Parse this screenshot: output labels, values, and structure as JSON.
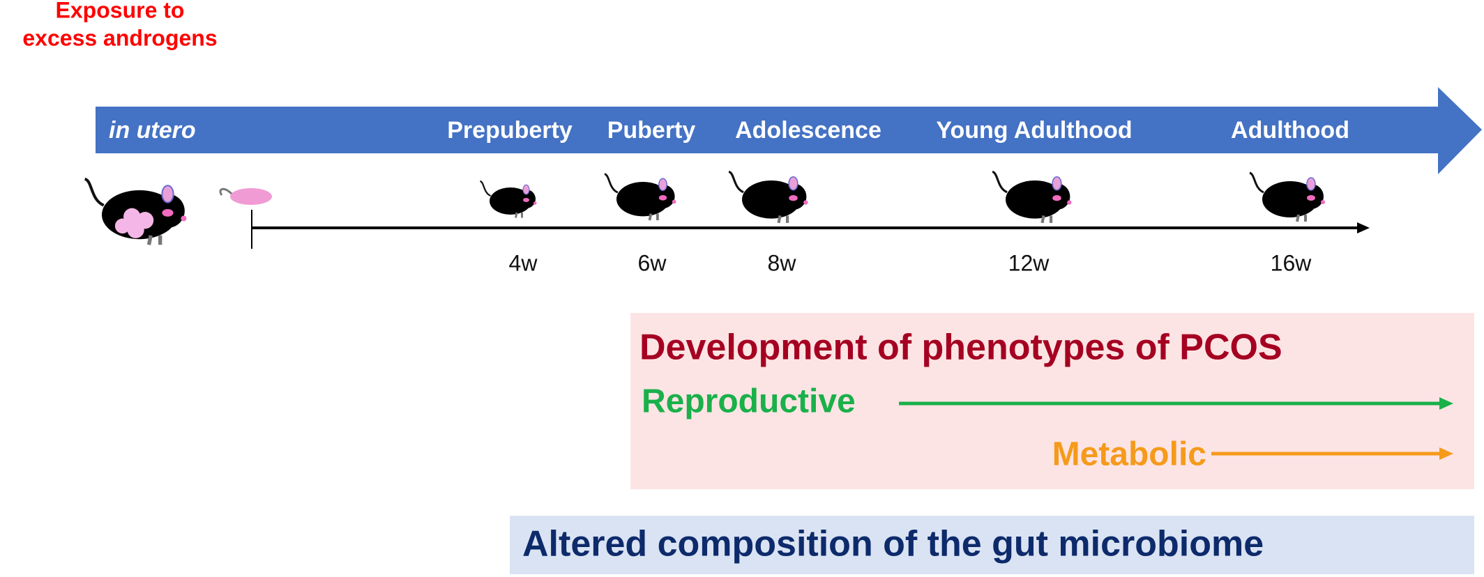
{
  "exposure": {
    "lines": [
      "Exposure to",
      "excess androgens"
    ]
  },
  "stages": [
    "in utero",
    "Prepuberty",
    "Puberty",
    "Adolescence",
    "Young Adulthood",
    "Adulthood"
  ],
  "ages": [
    "4w",
    "6w",
    "8w",
    "12w",
    "16w"
  ],
  "phenotypes": {
    "title": "Development of phenotypes of PCOS",
    "reproductive": "Reproductive",
    "metabolic": "Metabolic"
  },
  "microbiome": "Altered composition of the gut microbiome"
}
